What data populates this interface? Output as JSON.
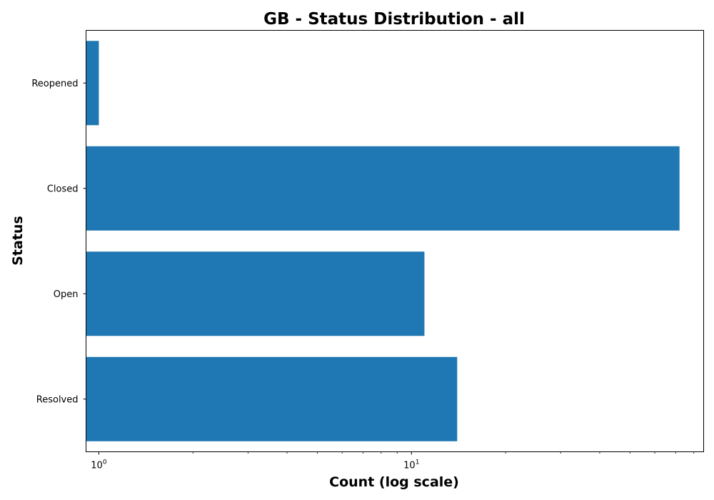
{
  "chart_data": {
    "type": "bar",
    "orientation": "horizontal",
    "title": "GB - Status Distribution - all",
    "xlabel": "Count (log scale)",
    "ylabel": "Status",
    "x_scale": "log",
    "xlim": [
      0.91,
      86
    ],
    "categories": [
      "Reopened",
      "Closed",
      "Open",
      "Resolved"
    ],
    "series": [
      {
        "values": [
          1,
          72,
          11,
          14
        ]
      }
    ],
    "x_ticks": [
      {
        "value": 1,
        "base": "10",
        "exponent": "0"
      },
      {
        "value": 10,
        "base": "10",
        "exponent": "1"
      }
    ],
    "bar_color": "#1f77b4",
    "grid": false,
    "legend": "none"
  }
}
